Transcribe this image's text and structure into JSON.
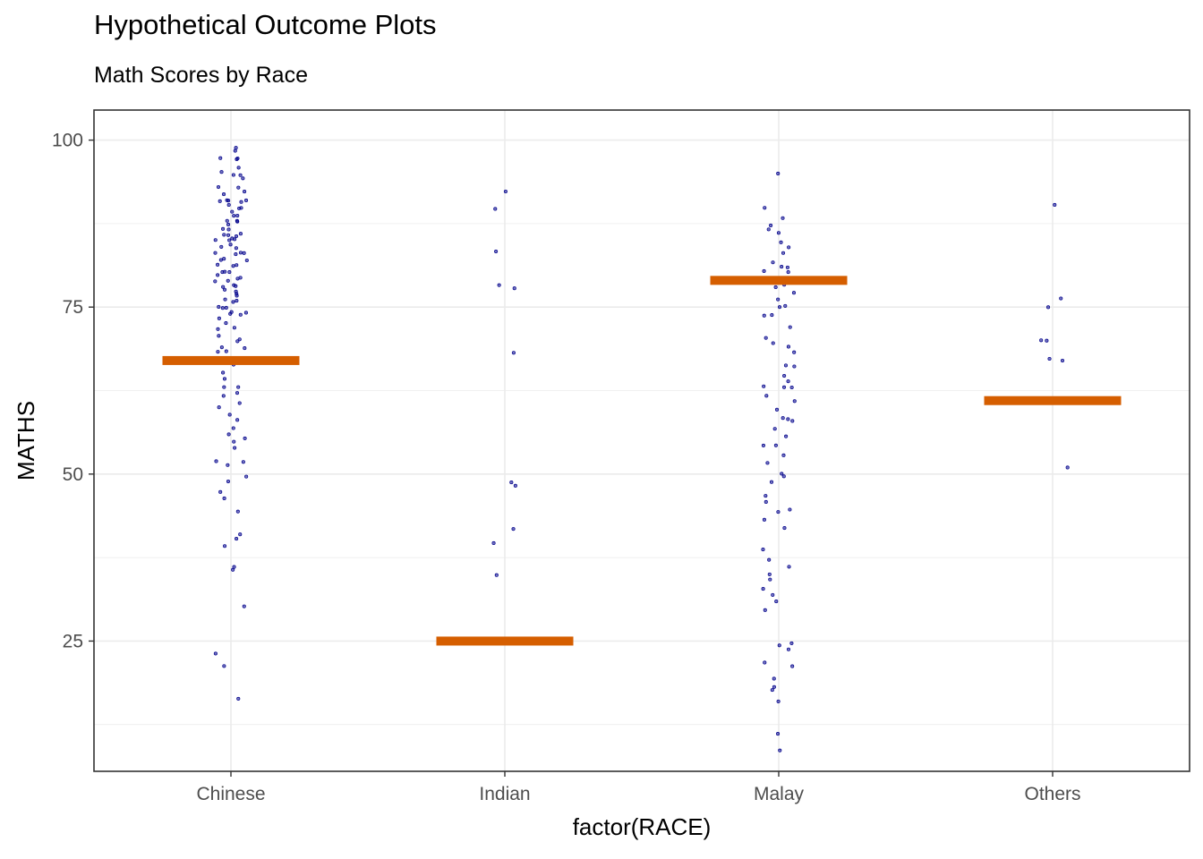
{
  "chart_data": {
    "type": "scatter",
    "title": "Hypothetical Outcome Plots",
    "subtitle": "Math Scores by Race",
    "xlabel": "factor(RACE)",
    "ylabel": "MATHS",
    "categories": [
      "Chinese",
      "Indian",
      "Malay",
      "Others"
    ],
    "ylim": [
      5.5,
      104.5
    ],
    "yticks": [
      25,
      50,
      75,
      100
    ],
    "grid": true,
    "point_color": "#00008b",
    "hop_color": "#d55e00",
    "hop_values": [
      67,
      25,
      79,
      61
    ],
    "points": {
      "Chinese": [
        99,
        98,
        97,
        97,
        97,
        96,
        95,
        95,
        95,
        94,
        93,
        93,
        92,
        92,
        91,
        91,
        91,
        91,
        91,
        90,
        90,
        90,
        89,
        89,
        89,
        88,
        88,
        88,
        87,
        87,
        87,
        86,
        86,
        86,
        86,
        85,
        85,
        85,
        85,
        84,
        84,
        84,
        83,
        83,
        83,
        83,
        82,
        82,
        82,
        81,
        81,
        81,
        80,
        80,
        80,
        80,
        79,
        79,
        79,
        79,
        78,
        78,
        78,
        78,
        77,
        77,
        77,
        76,
        76,
        76,
        75,
        75,
        75,
        74,
        74,
        74,
        74,
        73,
        73,
        72,
        72,
        71,
        70,
        70,
        69,
        69,
        68,
        68,
        67,
        66,
        65,
        64,
        63,
        63,
        62,
        62,
        61,
        60,
        59,
        58,
        57,
        56,
        55,
        55,
        54,
        52,
        52,
        51,
        50,
        49,
        47,
        46,
        44,
        41,
        40,
        39,
        36,
        36,
        30,
        23,
        21,
        16
      ],
      "Indian": [
        92,
        90,
        83,
        78,
        78,
        68,
        49,
        48,
        42,
        40,
        35
      ],
      "Malay": [
        95,
        90,
        88,
        87,
        87,
        86,
        85,
        84,
        83,
        82,
        81,
        81,
        80,
        80,
        79,
        78,
        78,
        77,
        76,
        75,
        75,
        74,
        74,
        72,
        70,
        70,
        69,
        68,
        66,
        66,
        65,
        64,
        63,
        63,
        63,
        62,
        61,
        60,
        58,
        58,
        58,
        57,
        56,
        54,
        54,
        53,
        52,
        50,
        50,
        49,
        47,
        46,
        45,
        44,
        43,
        42,
        39,
        37,
        36,
        35,
        34,
        33,
        32,
        31,
        30,
        25,
        24,
        24,
        22,
        21,
        19,
        18,
        18,
        16,
        11,
        9
      ],
      "Others": [
        90,
        76,
        75,
        70,
        70,
        67,
        67,
        51
      ]
    }
  }
}
